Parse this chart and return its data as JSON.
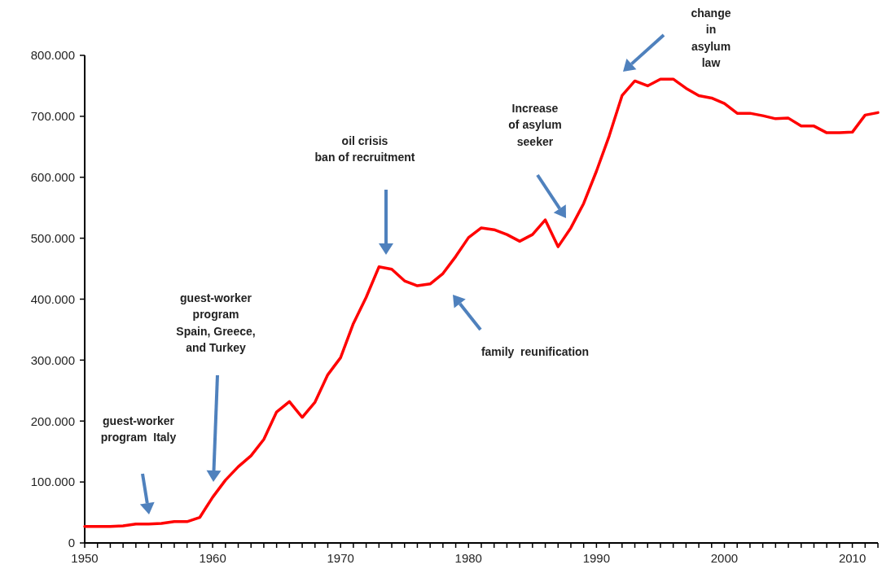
{
  "chart_data": {
    "type": "line",
    "x": [
      1950,
      1951,
      1952,
      1953,
      1954,
      1955,
      1956,
      1957,
      1958,
      1959,
      1960,
      1961,
      1962,
      1963,
      1964,
      1965,
      1966,
      1967,
      1968,
      1969,
      1970,
      1971,
      1972,
      1973,
      1974,
      1975,
      1976,
      1977,
      1978,
      1979,
      1980,
      1981,
      1982,
      1983,
      1984,
      1985,
      1986,
      1987,
      1988,
      1989,
      1990,
      1991,
      1992,
      1993,
      1994,
      1995,
      1996,
      1997,
      1998,
      1999,
      2000,
      2001,
      2002,
      2003,
      2004,
      2005,
      2006,
      2007,
      2008,
      2009,
      2010,
      2011,
      2012
    ],
    "series": [
      {
        "color": "#ff0000",
        "values": [
          27000,
          27000,
          27000,
          28000,
          31000,
          31000,
          32000,
          35000,
          35000,
          42000,
          75000,
          103000,
          125000,
          143000,
          170000,
          215000,
          232000,
          206000,
          231000,
          276000,
          304000,
          360000,
          403000,
          453000,
          449000,
          430000,
          422000,
          425000,
          442000,
          470000,
          501000,
          517000,
          514000,
          506000,
          495000,
          506000,
          530000,
          486000,
          517000,
          557000,
          610000,
          668000,
          734000,
          758000,
          750000,
          761000,
          761000,
          746000,
          734000,
          730000,
          721000,
          705000,
          705000,
          701000,
          696000,
          697000,
          684000,
          684000,
          673000,
          673000,
          674000,
          702000,
          706000
        ]
      }
    ],
    "xlim": [
      1950,
      2012
    ],
    "ylim": [
      0,
      800000
    ],
    "xticks": [
      1950,
      {
        "value": 1951,
        "label": null
      },
      {
        "value": 1952,
        "label": null
      },
      {
        "value": 1953,
        "label": null
      },
      {
        "value": 1954,
        "label": null
      },
      {
        "value": 1955,
        "label": null
      },
      {
        "value": 1956,
        "label": null
      },
      {
        "value": 1957,
        "label": null
      },
      {
        "value": 1958,
        "label": null
      },
      {
        "value": 1959,
        "label": null
      },
      1960,
      {
        "value": 1961,
        "label": null
      },
      {
        "value": 1962,
        "label": null
      },
      {
        "value": 1963,
        "label": null
      },
      {
        "value": 1964,
        "label": null
      },
      {
        "value": 1965,
        "label": null
      },
      {
        "value": 1966,
        "label": null
      },
      {
        "value": 1967,
        "label": null
      },
      {
        "value": 1968,
        "label": null
      },
      {
        "value": 1969,
        "label": null
      },
      1970,
      {
        "value": 1971,
        "label": null
      },
      {
        "value": 1972,
        "label": null
      },
      {
        "value": 1973,
        "label": null
      },
      {
        "value": 1974,
        "label": null
      },
      {
        "value": 1975,
        "label": null
      },
      {
        "value": 1976,
        "label": null
      },
      {
        "value": 1977,
        "label": null
      },
      {
        "value": 1978,
        "label": null
      },
      {
        "value": 1979,
        "label": null
      },
      1980,
      {
        "value": 1981,
        "label": null
      },
      {
        "value": 1982,
        "label": null
      },
      {
        "value": 1983,
        "label": null
      },
      {
        "value": 1984,
        "label": null
      },
      {
        "value": 1985,
        "label": null
      },
      {
        "value": 1986,
        "label": null
      },
      {
        "value": 1987,
        "label": null
      },
      {
        "value": 1988,
        "label": null
      },
      {
        "value": 1989,
        "label": null
      },
      1990,
      {
        "value": 1991,
        "label": null
      },
      {
        "value": 1992,
        "label": null
      },
      {
        "value": 1993,
        "label": null
      },
      {
        "value": 1994,
        "label": null
      },
      {
        "value": 1995,
        "label": null
      },
      {
        "value": 1996,
        "label": null
      },
      {
        "value": 1997,
        "label": null
      },
      {
        "value": 1998,
        "label": null
      },
      {
        "value": 1999,
        "label": null
      },
      2000,
      {
        "value": 2001,
        "label": null
      },
      {
        "value": 2002,
        "label": null
      },
      {
        "value": 2003,
        "label": null
      },
      {
        "value": 2004,
        "label": null
      },
      {
        "value": 2005,
        "label": null
      },
      {
        "value": 2006,
        "label": null
      },
      {
        "value": 2007,
        "label": null
      },
      {
        "value": 2008,
        "label": null
      },
      {
        "value": 2009,
        "label": null
      },
      2010,
      {
        "value": 2011,
        "label": null
      },
      {
        "value": 2012,
        "label": null
      }
    ],
    "yticks": [
      0,
      {
        "value": 100000,
        "label": "100.000"
      },
      {
        "value": 200000,
        "label": "200.000"
      },
      {
        "value": 300000,
        "label": "300.000"
      },
      {
        "value": 400000,
        "label": "400.000"
      },
      {
        "value": 500000,
        "label": "500.000"
      },
      {
        "value": 600000,
        "label": "600.000"
      },
      {
        "value": 700000,
        "label": "700.000"
      },
      {
        "value": 800000,
        "label": "800.000"
      }
    ],
    "annotations": [
      "guest-worker\nprogram  Italy",
      "guest-worker\nprogram\nSpain, Greece,\nand Turkey",
      "oil crisis\nban of recruitment",
      "family  reunification",
      "Increase\nof asylum\nseeker",
      "change\nin\nasylum\nlaw"
    ]
  }
}
